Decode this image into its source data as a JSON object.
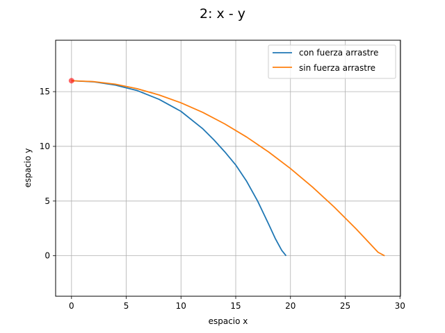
{
  "chart_data": {
    "type": "line",
    "title": "2: x - y",
    "xlabel": "espacio x",
    "ylabel": "espacio y",
    "xlim": [
      -1.45,
      30.05
    ],
    "ylim": [
      -3.7,
      19.7
    ],
    "xticks": [
      0,
      5,
      10,
      15,
      20,
      25,
      30
    ],
    "yticks": [
      0,
      5,
      10,
      15
    ],
    "grid": true,
    "legend_position": "top-right",
    "series": [
      {
        "name": "con fuerza arrastre",
        "color": "#1f77b4",
        "x": [
          0,
          2,
          4,
          6,
          8,
          10,
          12,
          13,
          14,
          15,
          16,
          17,
          18,
          18.6,
          19.2,
          19.6
        ],
        "y": [
          16,
          15.9,
          15.6,
          15.1,
          14.3,
          13.2,
          11.6,
          10.6,
          9.5,
          8.3,
          6.8,
          5.0,
          2.9,
          1.6,
          0.5,
          0
        ]
      },
      {
        "name": "sin fuerza arrastre",
        "color": "#ff7f0e",
        "x": [
          0,
          2,
          4,
          6,
          8,
          10,
          12,
          14,
          16,
          18,
          20,
          22,
          24,
          26,
          28,
          28.6
        ],
        "y": [
          16,
          15.92,
          15.68,
          15.27,
          14.7,
          13.98,
          13.1,
          12.05,
          10.85,
          9.49,
          7.97,
          6.29,
          4.45,
          2.45,
          0.32,
          0
        ]
      }
    ],
    "markers": [
      {
        "x": 0,
        "y": 16,
        "color": "#ff0000"
      }
    ]
  }
}
